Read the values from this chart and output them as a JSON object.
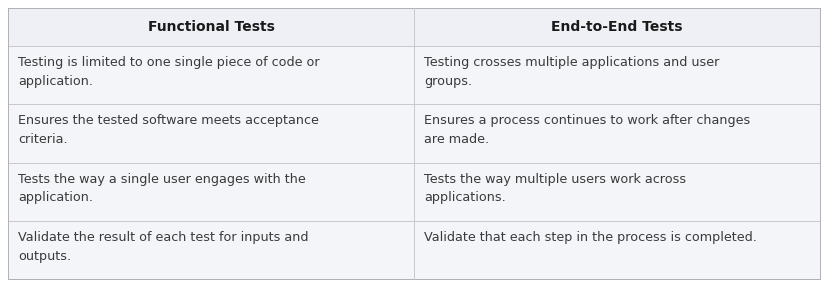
{
  "headers": [
    "Functional Tests",
    "End-to-End Tests"
  ],
  "rows": [
    [
      "Testing is limited to one single piece of code or\napplication.",
      "Testing crosses multiple applications and user\ngroups."
    ],
    [
      "Ensures the tested software meets acceptance\ncriteria.",
      "Ensures a process continues to work after changes\nare made."
    ],
    [
      "Tests the way a single user engages with the\napplication.",
      "Tests the way multiple users work across\napplications."
    ],
    [
      "Validate the result of each test for inputs and\noutputs.",
      "Validate that each step in the process is completed."
    ]
  ],
  "header_bg": "#eef0f5",
  "row_bg": "#f4f5f9",
  "border_color": "#c8c8cc",
  "header_font_color": "#1a1a1a",
  "body_font_color": "#3a3a3a",
  "header_fontsize": 10.0,
  "body_fontsize": 9.2,
  "col_split": 0.5,
  "background_color": "#ffffff",
  "outer_border_color": "#b0b0b8"
}
